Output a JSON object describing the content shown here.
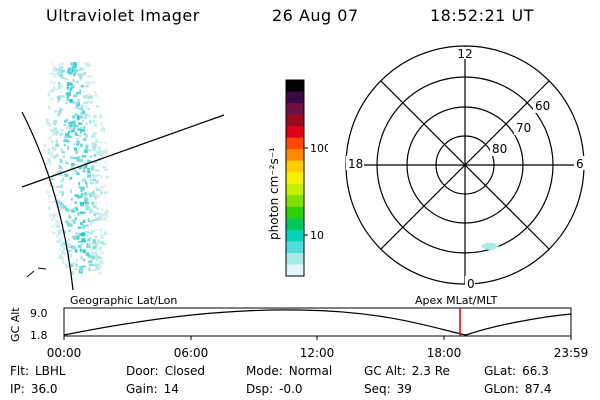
{
  "header": {
    "instrument": "Ultraviolet Imager",
    "date": "26 Aug 07",
    "time": "18:52:21 UT"
  },
  "colorbar": {
    "unit_label": "photon cm⁻²s⁻¹",
    "ticks": [
      "100",
      "10"
    ],
    "colors": [
      "#000000",
      "#3b0a46",
      "#6e1040",
      "#9b0b1f",
      "#e0001a",
      "#ff4a00",
      "#ff8a00",
      "#ffcc00",
      "#f7f200",
      "#c7ee00",
      "#7fe000",
      "#2ed100",
      "#00c85a",
      "#00d2b8",
      "#52dcdc",
      "#a7e9e9",
      "#e2f5f5"
    ]
  },
  "polar_plot": {
    "mlt_labels": {
      "top": "12",
      "left": "18",
      "right": "6",
      "bottom": "0"
    },
    "lat_labels": [
      "60",
      "70",
      "80"
    ]
  },
  "timeline": {
    "axis_label": "GC Alt",
    "y_ticks": [
      "9.0",
      "1.8"
    ],
    "left_label": "Geographic Lat/Lon",
    "right_label": "Apex MLat/MLT",
    "x_ticks": [
      "00:00",
      "06:00",
      "12:00",
      "18:00",
      "23:59"
    ],
    "marker_color": "#e00000"
  },
  "status": {
    "flt": {
      "label": "Flt:",
      "value": "LBHL"
    },
    "ip": {
      "label": "IP:",
      "value": "36.0"
    },
    "door": {
      "label": "Door:",
      "value": "Closed"
    },
    "gain": {
      "label": "Gain:",
      "value": "14"
    },
    "mode": {
      "label": "Mode:",
      "value": "Normal"
    },
    "dsp": {
      "label": "Dsp:",
      "value": "-0.0"
    },
    "gc_alt": {
      "label": "GC Alt:",
      "value": "2.3 Re"
    },
    "seq": {
      "label": "Seq:",
      "value": "39"
    },
    "glat": {
      "label": "GLat:",
      "value": "66.3"
    },
    "glon": {
      "label": "GLon:",
      "value": "87.4"
    }
  }
}
